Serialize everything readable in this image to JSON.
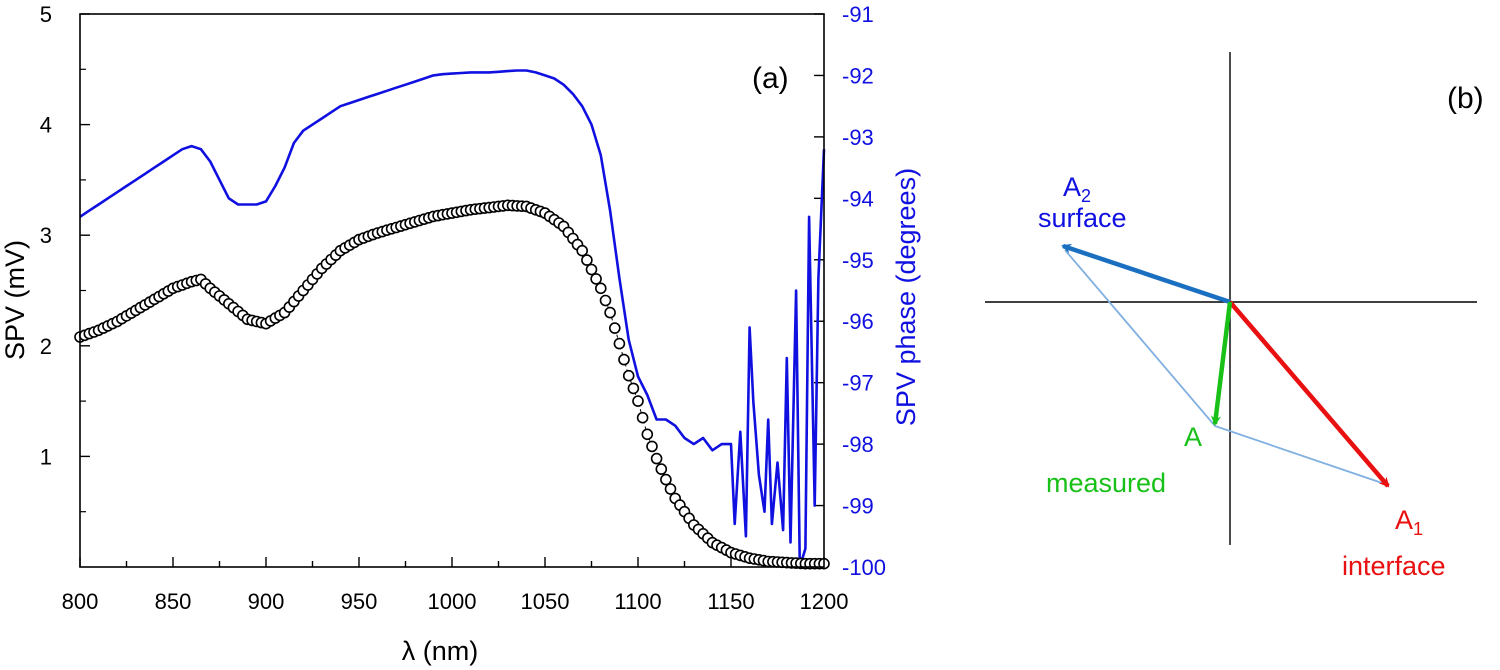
{
  "chart_data": [
    {
      "type": "line",
      "panel_label": "(a)",
      "x": {
        "label": "λ (nm)",
        "min": 800,
        "max": 1200,
        "major_ticks": [
          800,
          850,
          900,
          950,
          1000,
          1050,
          1100,
          1150,
          1200
        ],
        "minor_step": 25
      },
      "y_left": {
        "label": "SPV (mV)",
        "min": 0,
        "max": 5,
        "ticks": [
          1,
          2,
          3,
          4,
          5
        ]
      },
      "y_right": {
        "label": "SPV phase (degrees)",
        "min": -100,
        "max": -91,
        "ticks": [
          -100,
          -99,
          -98,
          -97,
          -96,
          -95,
          -94,
          -93,
          -92,
          -91
        ],
        "color": "#1010e0"
      },
      "series": [
        {
          "axis": "left",
          "style": "open-circles-dashed",
          "color": "#000000",
          "x": [
            800,
            810,
            820,
            830,
            840,
            850,
            860,
            865,
            870,
            880,
            890,
            900,
            910,
            920,
            930,
            940,
            950,
            960,
            970,
            980,
            990,
            1000,
            1010,
            1020,
            1030,
            1040,
            1050,
            1060,
            1070,
            1080,
            1085,
            1090,
            1095,
            1100,
            1105,
            1110,
            1115,
            1120,
            1125,
            1130,
            1140,
            1150,
            1160,
            1170,
            1180,
            1190,
            1200
          ],
          "values": [
            2.08,
            2.14,
            2.22,
            2.32,
            2.42,
            2.52,
            2.58,
            2.6,
            2.52,
            2.38,
            2.24,
            2.2,
            2.3,
            2.5,
            2.7,
            2.86,
            2.96,
            3.02,
            3.07,
            3.12,
            3.17,
            3.2,
            3.23,
            3.25,
            3.27,
            3.26,
            3.2,
            3.08,
            2.86,
            2.52,
            2.3,
            2.02,
            1.73,
            1.5,
            1.2,
            0.98,
            0.79,
            0.62,
            0.5,
            0.38,
            0.22,
            0.13,
            0.08,
            0.05,
            0.04,
            0.03,
            0.03
          ]
        },
        {
          "axis": "right",
          "style": "line",
          "color": "#1010e0",
          "x": [
            800,
            805,
            810,
            815,
            820,
            825,
            830,
            835,
            840,
            845,
            850,
            855,
            860,
            865,
            870,
            875,
            880,
            885,
            890,
            895,
            900,
            905,
            910,
            915,
            920,
            925,
            930,
            935,
            940,
            945,
            950,
            955,
            960,
            965,
            970,
            975,
            980,
            985,
            990,
            995,
            1000,
            1005,
            1010,
            1015,
            1020,
            1025,
            1030,
            1035,
            1040,
            1045,
            1050,
            1055,
            1060,
            1065,
            1070,
            1075,
            1080,
            1085,
            1090,
            1095,
            1100,
            1105,
            1110,
            1115,
            1120,
            1125,
            1130,
            1135,
            1140,
            1145,
            1150,
            1152,
            1155,
            1158,
            1160,
            1162,
            1165,
            1168,
            1170,
            1172,
            1175,
            1178,
            1180,
            1182,
            1185,
            1187,
            1190,
            1192,
            1195,
            1197,
            1200
          ],
          "values": [
            -94.3,
            -94.2,
            -94.1,
            -94.0,
            -93.9,
            -93.8,
            -93.7,
            -93.6,
            -93.5,
            -93.4,
            -93.3,
            -93.2,
            -93.15,
            -93.2,
            -93.4,
            -93.7,
            -94.0,
            -94.1,
            -94.1,
            -94.1,
            -94.05,
            -93.8,
            -93.5,
            -93.1,
            -92.9,
            -92.8,
            -92.7,
            -92.6,
            -92.5,
            -92.45,
            -92.4,
            -92.35,
            -92.3,
            -92.25,
            -92.2,
            -92.15,
            -92.1,
            -92.05,
            -92.0,
            -91.98,
            -91.97,
            -91.96,
            -91.95,
            -91.95,
            -91.95,
            -91.94,
            -91.93,
            -91.92,
            -91.92,
            -91.95,
            -92.0,
            -92.05,
            -92.15,
            -92.3,
            -92.5,
            -92.8,
            -93.3,
            -94.2,
            -95.3,
            -96.3,
            -96.9,
            -97.2,
            -97.6,
            -97.6,
            -97.7,
            -97.9,
            -98.0,
            -97.9,
            -98.1,
            -98.0,
            -98.0,
            -99.3,
            -97.8,
            -99.5,
            -96.1,
            -97.3,
            -98.5,
            -99.1,
            -97.6,
            -99.3,
            -98.3,
            -99.4,
            -96.6,
            -99.6,
            -95.5,
            -100.0,
            -99.7,
            -94.3,
            -99.0,
            -95.3,
            -93.2
          ]
        }
      ]
    },
    {
      "type": "diagram",
      "panel_label": "(b)",
      "vectors": [
        {
          "name": "A2",
          "label_main": "A",
          "label_sub": "2",
          "label_line2": "surface",
          "color": "#1a6fc0"
        },
        {
          "name": "A1",
          "label_main": "A",
          "label_sub": "1",
          "label_line2": "interface",
          "color": "#e81010"
        },
        {
          "name": "A",
          "label_main": "A",
          "label_line2": "measured",
          "color": "#18c018"
        }
      ],
      "parallelogram_color": "#80b0e0"
    }
  ]
}
